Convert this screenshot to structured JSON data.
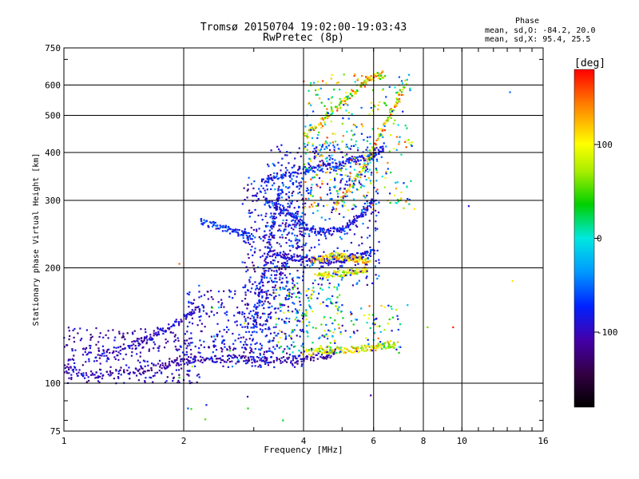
{
  "chart_data": {
    "type": "scatter",
    "title": "Tromsø 20150704 19:02:00-19:03:43",
    "subtitle": "RwPretec (8p)",
    "xlabel": "Frequency [MHz]",
    "ylabel": "Stationary phase Virtual Height [km]",
    "x_scale": "log",
    "y_scale": "log",
    "xlim": [
      1,
      16
    ],
    "ylim": [
      75,
      750
    ],
    "x_ticks": [
      "1",
      "2",
      "4",
      "6",
      "8",
      "10",
      "16"
    ],
    "y_ticks": [
      "75",
      "100",
      "200",
      "300",
      "400",
      "500",
      "600",
      "750"
    ],
    "grid": true,
    "colorbar": {
      "label": "[deg]",
      "range": [
        -180,
        180
      ],
      "ticks": [
        "100",
        "0",
        "-100"
      ],
      "tick_values": [
        100,
        0,
        -100
      ]
    },
    "legend": {
      "title": "Phase",
      "lines": [
        "mean, sd,O: -84.2, 20.0",
        "mean, sd,X:  95.4, 25.5"
      ]
    },
    "traces": [
      {
        "mode": "O",
        "phase": [
          -130,
          -85
        ],
        "x": [
          1.0,
          1.2,
          1.5,
          1.8,
          2.0,
          2.3,
          2.7,
          3.0,
          3.5,
          4.0,
          4.5,
          4.8
        ],
        "y": [
          109,
          105,
          108,
          112,
          114,
          116,
          116,
          115,
          115,
          116,
          118,
          119
        ]
      },
      {
        "mode": "O",
        "phase": [
          -120,
          -75
        ],
        "x": [
          1.2,
          1.4,
          1.6,
          1.8,
          2.0,
          2.2
        ],
        "y": [
          118,
          124,
          130,
          138,
          148,
          158
        ]
      },
      {
        "mode": "O",
        "phase": [
          -110,
          -60
        ],
        "x": [
          3.2,
          3.5,
          3.8,
          4.0,
          4.3,
          4.6,
          5.0,
          5.4,
          5.7,
          6.0
        ],
        "y": [
          300,
          285,
          270,
          258,
          250,
          248,
          255,
          268,
          280,
          300
        ]
      },
      {
        "mode": "O",
        "phase": [
          -120,
          -70
        ],
        "x": [
          3.3,
          3.6,
          3.9,
          4.2,
          4.6,
          5.0,
          5.5,
          6.0
        ],
        "y": [
          220,
          215,
          212,
          210,
          208,
          210,
          215,
          220
        ]
      },
      {
        "mode": "O",
        "phase": [
          -110,
          -55
        ],
        "x": [
          3.2,
          3.6,
          4.0,
          4.4,
          4.8,
          5.2,
          5.6,
          6.0,
          6.4
        ],
        "y": [
          340,
          350,
          360,
          365,
          370,
          380,
          385,
          395,
          410
        ]
      },
      {
        "mode": "O",
        "phase": [
          -100,
          -40
        ],
        "x": [
          2.2,
          2.4,
          2.6,
          2.8,
          3.0
        ],
        "y": [
          265,
          258,
          252,
          246,
          240
        ]
      },
      {
        "mode": "O",
        "phase": [
          -120,
          -60
        ],
        "x": [
          3.0,
          3.1,
          3.2,
          3.3,
          3.4,
          3.5
        ],
        "y": [
          140,
          170,
          200,
          240,
          280,
          320
        ]
      },
      {
        "mode": "X",
        "phase": [
          60,
          150
        ],
        "x": [
          4.2,
          4.5,
          4.8,
          5.0,
          5.3,
          5.6,
          5.9
        ],
        "y": [
          210,
          212,
          215,
          214,
          212,
          210,
          208
        ]
      },
      {
        "mode": "X",
        "phase": [
          55,
          140
        ],
        "x": [
          4.3,
          4.6,
          5.0,
          5.4,
          5.8
        ],
        "y": [
          190,
          192,
          194,
          196,
          198
        ]
      },
      {
        "mode": "X",
        "phase": [
          50,
          140
        ],
        "x": [
          4.0,
          4.4,
          4.8,
          5.2,
          5.6,
          6.0,
          6.4,
          6.8
        ],
        "y": [
          120,
          121,
          122,
          122,
          123,
          124,
          125,
          126
        ]
      },
      {
        "mode": "X",
        "phase": [
          40,
          170
        ],
        "x": [
          4.8,
          5.2,
          5.6,
          6.0,
          6.4,
          6.8,
          7.2
        ],
        "y": [
          290,
          320,
          360,
          410,
          470,
          530,
          600
        ]
      },
      {
        "mode": "X",
        "phase": [
          30,
          170
        ],
        "x": [
          4.0,
          4.4,
          4.8,
          5.2,
          5.6,
          6.0,
          6.4
        ],
        "y": [
          440,
          480,
          520,
          560,
          600,
          630,
          640
        ]
      }
    ],
    "scatter_regions": [
      {
        "x": [
          1.0,
          2.2
        ],
        "y": [
          100,
          140
        ],
        "phase": [
          -130,
          -70
        ],
        "count": 300
      },
      {
        "x": [
          2.0,
          3.3
        ],
        "y": [
          110,
          175
        ],
        "phase": [
          -120,
          -60
        ],
        "count": 240
      },
      {
        "x": [
          2.8,
          4.0
        ],
        "y": [
          110,
          350
        ],
        "phase": [
          -130,
          -50
        ],
        "count": 520
      },
      {
        "x": [
          3.2,
          6.2
        ],
        "y": [
          180,
          420
        ],
        "phase": [
          -120,
          -30
        ],
        "count": 480
      },
      {
        "x": [
          3.4,
          5.0
        ],
        "y": [
          120,
          180
        ],
        "phase": [
          -100,
          120
        ],
        "count": 160
      },
      {
        "x": [
          4.0,
          7.5
        ],
        "y": [
          280,
          640
        ],
        "phase": [
          -80,
          170
        ],
        "count": 360
      },
      {
        "x": [
          4.5,
          7.0
        ],
        "y": [
          120,
          160
        ],
        "phase": [
          -120,
          160
        ],
        "count": 90
      },
      {
        "x": [
          1.9,
          3.0
        ],
        "y": [
          80,
          180
        ],
        "phase": [
          -100,
          100
        ],
        "count": 20
      }
    ],
    "isolated_points": [
      {
        "x": 2.05,
        "y": 86,
        "phase": -60
      },
      {
        "x": 2.9,
        "y": 86,
        "phase": 40
      },
      {
        "x": 3.55,
        "y": 80,
        "phase": 30
      },
      {
        "x": 5.9,
        "y": 93,
        "phase": -110
      },
      {
        "x": 7.3,
        "y": 160,
        "phase": -20
      },
      {
        "x": 7.6,
        "y": 285,
        "phase": 110
      },
      {
        "x": 8.2,
        "y": 140,
        "phase": 60
      },
      {
        "x": 9.5,
        "y": 140,
        "phase": 170
      },
      {
        "x": 10.4,
        "y": 290,
        "phase": -90
      },
      {
        "x": 13.2,
        "y": 575,
        "phase": -50
      },
      {
        "x": 13.4,
        "y": 185,
        "phase": 110
      },
      {
        "x": 1.65,
        "y": 132,
        "phase": -100
      },
      {
        "x": 1.95,
        "y": 205,
        "phase": 150
      }
    ]
  }
}
